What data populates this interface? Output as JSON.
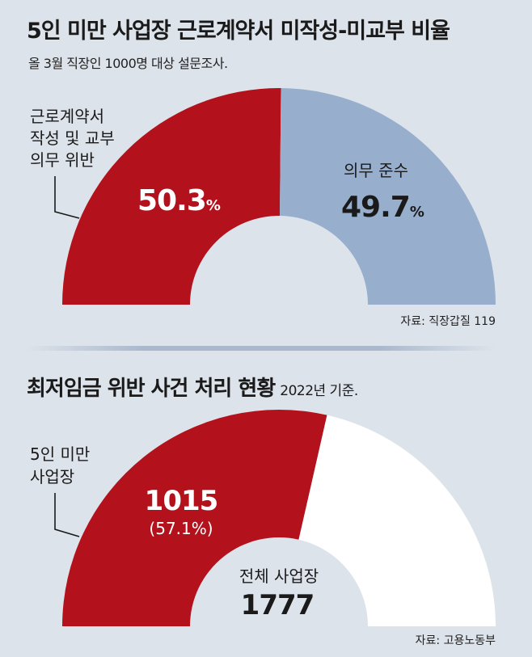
{
  "charts": [
    {
      "title": "5인 미만 사업장 근로계약서 미작성-미교부 비율",
      "subtitle": "올 3월 직장인 1000명 대상 설문조사.",
      "source": "자료: 직장갑질 119",
      "annotation_lines": [
        "근로계약서",
        "작성 및 교부",
        "의무 위반"
      ],
      "segment_labels": [
        {
          "value": "50.3",
          "unit": "%"
        },
        {
          "name": "의무 준수",
          "value": "49.7",
          "unit": "%"
        }
      ]
    },
    {
      "title": "최저임금 위반 사건 처리 현황",
      "note": "2022년 기준.",
      "source": "자료: 고용노동부",
      "annotation_lines": [
        "5인 미만",
        "사업장"
      ],
      "segment_value": "1015",
      "segment_percent": "(57.1%)",
      "center_label": "전체 사업장",
      "center_value": "1777"
    }
  ],
  "colors": {
    "background": "#dde3ea",
    "red": "#b3111c",
    "blue": "#97aecd",
    "white": "#ffffff"
  },
  "chart_data": [
    {
      "type": "pie",
      "title": "5인 미만 사업장 근로계약서 미작성-미교부 비율",
      "categories": [
        "근로계약서 작성 및 교부 의무 위반",
        "의무 준수"
      ],
      "values": [
        50.3,
        49.7
      ],
      "unit": "%"
    },
    {
      "type": "pie",
      "title": "최저임금 위반 사건 처리 현황",
      "categories": [
        "5인 미만 사업장",
        "전체 사업장"
      ],
      "values": [
        1015,
        1777
      ],
      "percent": [
        57.1
      ]
    }
  ]
}
